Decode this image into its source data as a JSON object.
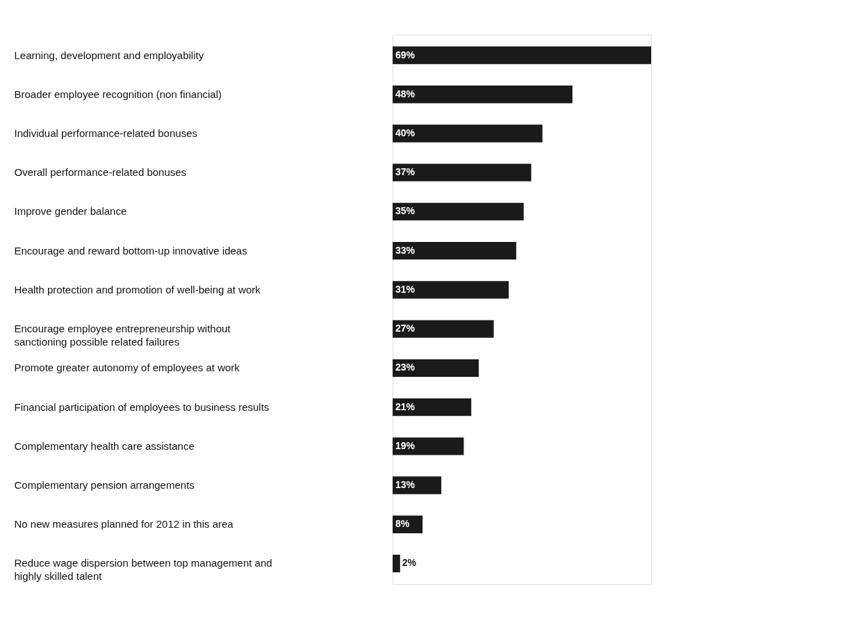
{
  "chart_data": {
    "type": "bar",
    "orientation": "horizontal",
    "categories": [
      "Learning, development and employability",
      "Broader employee recognition (non financial)",
      "Individual performance-related bonuses",
      "Overall performance-related bonuses",
      "Improve gender balance",
      "Encourage and reward bottom-up innovative ideas",
      "Health protection and promotion of well-being at work",
      "Encourage employee entrepreneurship without\nsanctioning possible related failures",
      "Promote greater autonomy of employees at work",
      "Financial participation of employees to business results",
      "Complementary health care assistance",
      "Complementary pension arrangements",
      "No new measures planned for 2012 in this area",
      "Reduce wage dispersion between top management and\nhighly skilled talent"
    ],
    "values": [
      69,
      48,
      40,
      37,
      35,
      33,
      31,
      27,
      23,
      21,
      19,
      13,
      8,
      2
    ],
    "value_labels": [
      "69%",
      "48%",
      "40%",
      "37%",
      "35%",
      "33%",
      "31%",
      "27%",
      "23%",
      "21%",
      "19%",
      "13%",
      "8%",
      "2%"
    ],
    "color": "#1a1a1a",
    "grid": false,
    "tick_labels": "y"
  }
}
